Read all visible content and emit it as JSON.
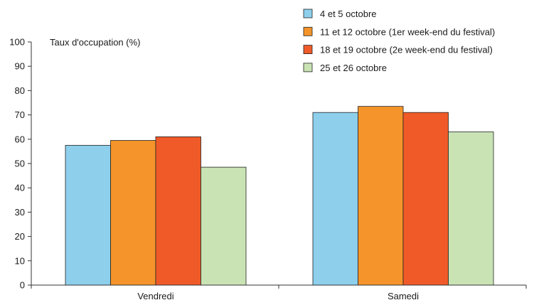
{
  "chart_data": {
    "type": "bar",
    "title": "",
    "xlabel": "",
    "ylabel": "Taux d'occupation (%)",
    "ylim": [
      0,
      100
    ],
    "yticks": [
      0,
      10,
      20,
      30,
      40,
      50,
      60,
      70,
      80,
      90,
      100
    ],
    "categories": [
      "Vendredi",
      "Samedi"
    ],
    "series": [
      {
        "name": "4 et 5 octobre",
        "color": "#8ecfec",
        "values": [
          57.5,
          71
        ]
      },
      {
        "name": "11 et 12 octobre (1er week-end du festival)",
        "color": "#f5942a",
        "values": [
          59.5,
          73.5
        ]
      },
      {
        "name": "18 et 19 octobre (2e week-end du festival)",
        "color": "#f05a28",
        "values": [
          61,
          71
        ]
      },
      {
        "name": "25 et 26 octobre",
        "color": "#c9e3b4",
        "values": [
          48.5,
          63
        ]
      }
    ],
    "legend_position": "top-right",
    "grid": false
  }
}
